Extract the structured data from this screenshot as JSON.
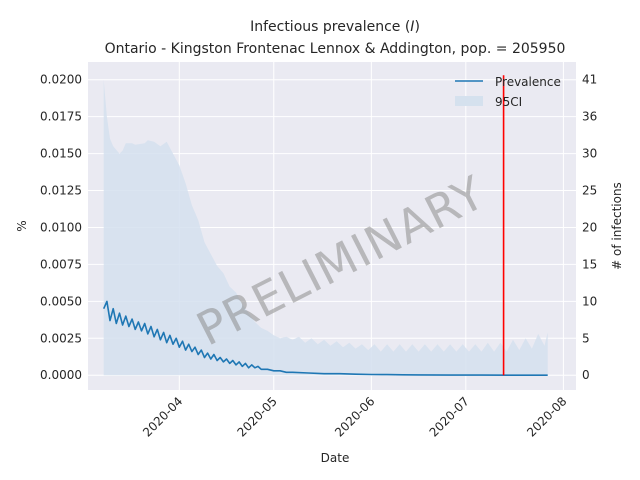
{
  "chart_data": {
    "type": "line",
    "title": "Infectious prevalence (I)",
    "title_prefix": "Infectious prevalence (",
    "title_symbol": "I",
    "title_suffix": ")",
    "subtitle": "Ontario - Kingston Frontenac Lennox & Addington, pop. = 205950",
    "xlabel": "Date",
    "ylabel": "%",
    "ylabel_right": "# of infections",
    "watermark": "PRELIMINARY",
    "population": 205950,
    "x_range": [
      "2020-03-03",
      "2020-08-05"
    ],
    "x_ticks": [
      {
        "date": "2020-04-01",
        "label": "2020-04"
      },
      {
        "date": "2020-05-01",
        "label": "2020-05"
      },
      {
        "date": "2020-06-01",
        "label": "2020-06"
      },
      {
        "date": "2020-07-01",
        "label": "2020-07"
      },
      {
        "date": "2020-08-01",
        "label": "2020-08"
      }
    ],
    "ylim": [
      -0.001,
      0.0212
    ],
    "y_ticks": [
      "0.0000",
      "0.0025",
      "0.0050",
      "0.0075",
      "0.0100",
      "0.0125",
      "0.0150",
      "0.0175",
      "0.0200"
    ],
    "y_ticks_right": [
      "0",
      "5",
      "10",
      "15",
      "20",
      "25",
      "30",
      "36",
      "41"
    ],
    "vline_date": "2020-07-13",
    "vline_range": [
      0,
      0.0203
    ],
    "legend": {
      "position": "top-right",
      "series_label": "Prevalence",
      "band_label": "95CI"
    },
    "series": [
      {
        "name": "Prevalence",
        "start_date": "2020-03-08",
        "end_date": "2020-07-27",
        "points": [
          {
            "day": 0,
            "value": 0.0045
          },
          {
            "day": 1,
            "value": 0.005
          },
          {
            "day": 2,
            "value": 0.0037
          },
          {
            "day": 3,
            "value": 0.0045
          },
          {
            "day": 4,
            "value": 0.0035
          },
          {
            "day": 5,
            "value": 0.0042
          },
          {
            "day": 6,
            "value": 0.0034
          },
          {
            "day": 7,
            "value": 0.004
          },
          {
            "day": 8,
            "value": 0.0033
          },
          {
            "day": 9,
            "value": 0.0038
          },
          {
            "day": 10,
            "value": 0.0031
          },
          {
            "day": 11,
            "value": 0.0036
          },
          {
            "day": 12,
            "value": 0.003
          },
          {
            "day": 13,
            "value": 0.0035
          },
          {
            "day": 14,
            "value": 0.0028
          },
          {
            "day": 15,
            "value": 0.0033
          },
          {
            "day": 16,
            "value": 0.0026
          },
          {
            "day": 17,
            "value": 0.0031
          },
          {
            "day": 18,
            "value": 0.0024
          },
          {
            "day": 19,
            "value": 0.0029
          },
          {
            "day": 20,
            "value": 0.0022
          },
          {
            "day": 21,
            "value": 0.0027
          },
          {
            "day": 22,
            "value": 0.0021
          },
          {
            "day": 23,
            "value": 0.0025
          },
          {
            "day": 24,
            "value": 0.0019
          },
          {
            "day": 25,
            "value": 0.0023
          },
          {
            "day": 26,
            "value": 0.0017
          },
          {
            "day": 27,
            "value": 0.0021
          },
          {
            "day": 28,
            "value": 0.0016
          },
          {
            "day": 29,
            "value": 0.0019
          },
          {
            "day": 30,
            "value": 0.0014
          },
          {
            "day": 31,
            "value": 0.0017
          },
          {
            "day": 32,
            "value": 0.0012
          },
          {
            "day": 33,
            "value": 0.0015
          },
          {
            "day": 34,
            "value": 0.0011
          },
          {
            "day": 35,
            "value": 0.0014
          },
          {
            "day": 36,
            "value": 0.001
          },
          {
            "day": 37,
            "value": 0.0012
          },
          {
            "day": 38,
            "value": 0.0009
          },
          {
            "day": 39,
            "value": 0.0011
          },
          {
            "day": 40,
            "value": 0.0008
          },
          {
            "day": 41,
            "value": 0.001
          },
          {
            "day": 42,
            "value": 0.0007
          },
          {
            "day": 43,
            "value": 0.0009
          },
          {
            "day": 44,
            "value": 0.0006
          },
          {
            "day": 45,
            "value": 0.0008
          },
          {
            "day": 46,
            "value": 0.0005
          },
          {
            "day": 47,
            "value": 0.0007
          },
          {
            "day": 48,
            "value": 0.0005
          },
          {
            "day": 49,
            "value": 0.0006
          },
          {
            "day": 50,
            "value": 0.0004
          },
          {
            "day": 52,
            "value": 0.0004
          },
          {
            "day": 54,
            "value": 0.0003
          },
          {
            "day": 56,
            "value": 0.0003
          },
          {
            "day": 58,
            "value": 0.0002
          },
          {
            "day": 60,
            "value": 0.0002
          },
          {
            "day": 65,
            "value": 0.00015
          },
          {
            "day": 70,
            "value": 0.0001
          },
          {
            "day": 75,
            "value": 0.0001
          },
          {
            "day": 80,
            "value": 7e-05
          },
          {
            "day": 85,
            "value": 5e-05
          },
          {
            "day": 90,
            "value": 4e-05
          },
          {
            "day": 95,
            "value": 3e-05
          },
          {
            "day": 100,
            "value": 2e-05
          },
          {
            "day": 110,
            "value": 1e-05
          },
          {
            "day": 120,
            "value": 1e-05
          },
          {
            "day": 130,
            "value": 0.0
          },
          {
            "day": 141,
            "value": 0.0
          }
        ]
      }
    ],
    "band": {
      "name": "95CI",
      "upper": [
        {
          "day": 0,
          "value": 0.02
        },
        {
          "day": 1,
          "value": 0.0175
        },
        {
          "day": 2,
          "value": 0.016
        },
        {
          "day": 3,
          "value": 0.0155
        },
        {
          "day": 5,
          "value": 0.015
        },
        {
          "day": 6,
          "value": 0.0152
        },
        {
          "day": 7,
          "value": 0.0157
        },
        {
          "day": 9,
          "value": 0.0157
        },
        {
          "day": 10,
          "value": 0.0156
        },
        {
          "day": 13,
          "value": 0.0157
        },
        {
          "day": 14,
          "value": 0.0159
        },
        {
          "day": 16,
          "value": 0.0158
        },
        {
          "day": 18,
          "value": 0.0155
        },
        {
          "day": 20,
          "value": 0.0158
        },
        {
          "day": 22,
          "value": 0.015
        },
        {
          "day": 24,
          "value": 0.0142
        },
        {
          "day": 26,
          "value": 0.013
        },
        {
          "day": 28,
          "value": 0.0115
        },
        {
          "day": 30,
          "value": 0.0105
        },
        {
          "day": 32,
          "value": 0.009
        },
        {
          "day": 34,
          "value": 0.0082
        },
        {
          "day": 36,
          "value": 0.0074
        },
        {
          "day": 38,
          "value": 0.0069
        },
        {
          "day": 40,
          "value": 0.006
        },
        {
          "day": 42,
          "value": 0.0056
        },
        {
          "day": 44,
          "value": 0.0048
        },
        {
          "day": 46,
          "value": 0.0042
        },
        {
          "day": 48,
          "value": 0.0036
        },
        {
          "day": 50,
          "value": 0.0032
        },
        {
          "day": 52,
          "value": 0.003
        },
        {
          "day": 54,
          "value": 0.0027
        },
        {
          "day": 56,
          "value": 0.0025
        },
        {
          "day": 58,
          "value": 0.0026
        },
        {
          "day": 60,
          "value": 0.0024
        },
        {
          "day": 62,
          "value": 0.0026
        },
        {
          "day": 64,
          "value": 0.0022
        },
        {
          "day": 66,
          "value": 0.0025
        },
        {
          "day": 68,
          "value": 0.0021
        },
        {
          "day": 70,
          "value": 0.0024
        },
        {
          "day": 72,
          "value": 0.002
        },
        {
          "day": 74,
          "value": 0.0023
        },
        {
          "day": 76,
          "value": 0.0019
        },
        {
          "day": 78,
          "value": 0.0022
        },
        {
          "day": 80,
          "value": 0.0018
        },
        {
          "day": 82,
          "value": 0.0021
        },
        {
          "day": 84,
          "value": 0.0017
        },
        {
          "day": 86,
          "value": 0.0021
        },
        {
          "day": 88,
          "value": 0.0016
        },
        {
          "day": 90,
          "value": 0.0021
        },
        {
          "day": 92,
          "value": 0.0016
        },
        {
          "day": 94,
          "value": 0.0021
        },
        {
          "day": 96,
          "value": 0.0016
        },
        {
          "day": 98,
          "value": 0.0021
        },
        {
          "day": 100,
          "value": 0.0016
        },
        {
          "day": 102,
          "value": 0.0021
        },
        {
          "day": 104,
          "value": 0.0016
        },
        {
          "day": 106,
          "value": 0.0021
        },
        {
          "day": 108,
          "value": 0.0016
        },
        {
          "day": 110,
          "value": 0.0021
        },
        {
          "day": 112,
          "value": 0.0016
        },
        {
          "day": 114,
          "value": 0.0021
        },
        {
          "day": 116,
          "value": 0.0016
        },
        {
          "day": 118,
          "value": 0.0021
        },
        {
          "day": 120,
          "value": 0.0016
        },
        {
          "day": 122,
          "value": 0.0022
        },
        {
          "day": 124,
          "value": 0.0016
        },
        {
          "day": 126,
          "value": 0.0022
        },
        {
          "day": 128,
          "value": 0.0016
        },
        {
          "day": 130,
          "value": 0.0024
        },
        {
          "day": 132,
          "value": 0.0017
        },
        {
          "day": 134,
          "value": 0.0025
        },
        {
          "day": 136,
          "value": 0.0018
        },
        {
          "day": 138,
          "value": 0.0028
        },
        {
          "day": 140,
          "value": 0.002
        },
        {
          "day": 141,
          "value": 0.0029
        }
      ],
      "lower": [
        {
          "day": 0,
          "value": 0.0
        },
        {
          "day": 141,
          "value": 0.0
        }
      ]
    }
  },
  "colors": {
    "plot_bg": "#eaeaf2",
    "grid": "#ffffff",
    "line": "#1f77b4",
    "band": "#d5e1ee",
    "vline": "#ff0000",
    "text": "#262626",
    "watermark": "#8c8c8c"
  }
}
